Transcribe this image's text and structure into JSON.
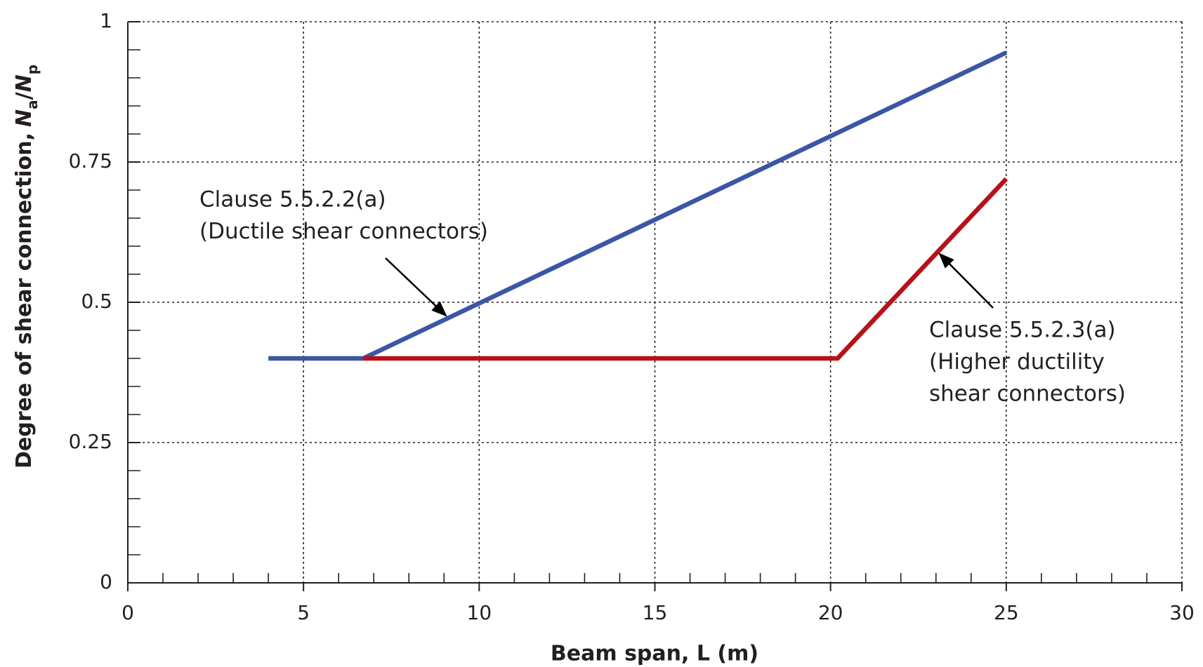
{
  "chart_data": {
    "type": "line",
    "xlabel": "Beam span, L (m)",
    "ylabel": {
      "text": "Degree of shear connection,",
      "symbol": [
        "N",
        "a",
        "/",
        "N",
        "p"
      ]
    },
    "xlim": [
      0,
      30
    ],
    "ylim": [
      0,
      1
    ],
    "xticks": [
      0,
      5,
      10,
      15,
      20,
      25,
      30
    ],
    "yticks": [
      0,
      0.25,
      0.5,
      0.75,
      1
    ],
    "xminorticks": [
      1,
      2,
      3,
      4,
      6,
      7,
      8,
      9,
      11,
      12,
      13,
      14,
      16,
      17,
      18,
      19,
      21,
      22,
      23,
      24,
      26,
      27,
      28,
      29
    ],
    "yminorticks": [
      0.05,
      0.1,
      0.15,
      0.2,
      0.3,
      0.35,
      0.4,
      0.45,
      0.55,
      0.6,
      0.65,
      0.7,
      0.8,
      0.85,
      0.9,
      0.95
    ],
    "grid": true,
    "series": [
      {
        "name": "Clause 5.5.2.2(a)",
        "color": "#3a56a5",
        "x": [
          4,
          6.7,
          25
        ],
        "values": [
          0.4,
          0.4,
          0.945
        ]
      },
      {
        "name": "Clause 5.5.2.3(a)",
        "color": "#b5121b",
        "x": [
          6.7,
          20.2,
          25
        ],
        "values": [
          0.4,
          0.4,
          0.72
        ]
      }
    ],
    "annotations": [
      {
        "lines": [
          "Clause 5.5.2.2(a)",
          "(Ductile shear connectors)"
        ]
      },
      {
        "lines": [
          "Clause 5.5.2.3(a)",
          "(Higher ductility",
          "shear connectors)"
        ]
      }
    ]
  }
}
